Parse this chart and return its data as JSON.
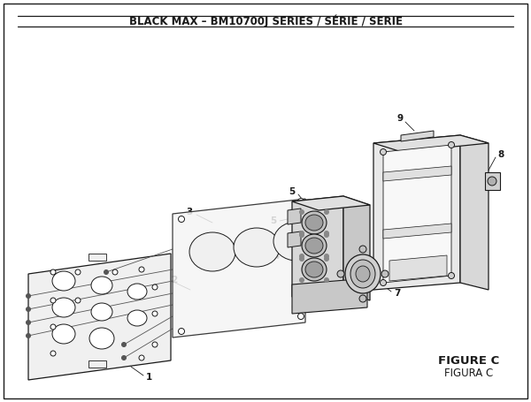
{
  "title": "BLACK MAX – BM10700J SERIES / SÉRIE / SERIE",
  "figure_label": "FIGURE C",
  "figura_label": "FIGURA C",
  "bg_color": "#ffffff",
  "line_color": "#1a1a1a",
  "border_color": "#333333",
  "title_fontsize": 8.5,
  "label_fontsize": 7.5
}
